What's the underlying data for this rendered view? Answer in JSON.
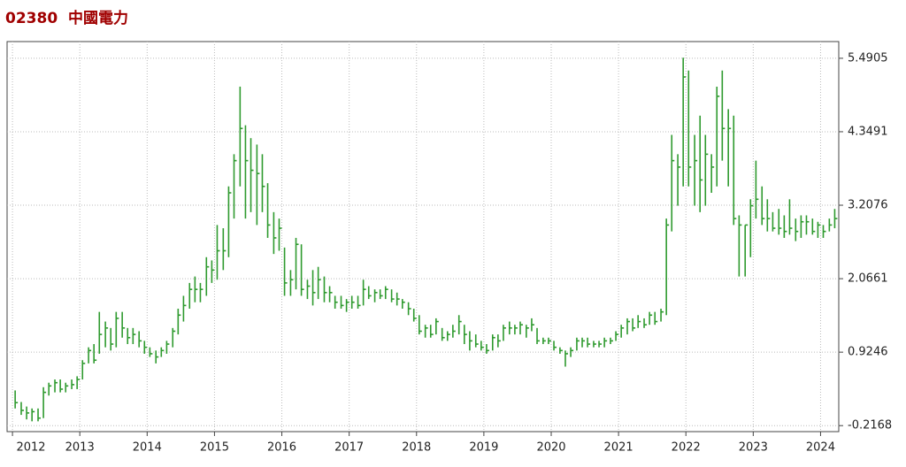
{
  "chart_data": {
    "type": "ohlc",
    "title": "02380  中國電力",
    "color": "#2e9a2e",
    "grid": true,
    "xlim": [
      2011.92,
      2024.27
    ],
    "xticks": [
      2012,
      2013,
      2014,
      2015,
      2016,
      2017,
      2018,
      2019,
      2020,
      2021,
      2022,
      2023,
      2024
    ],
    "ylim": [
      -0.31,
      5.75
    ],
    "yticks": [
      -0.2168,
      0.9246,
      2.0661,
      3.2076,
      4.3491,
      5.4905
    ],
    "x": [
      2012.04,
      2012.13,
      2012.21,
      2012.29,
      2012.38,
      2012.46,
      2012.54,
      2012.63,
      2012.71,
      2012.79,
      2012.88,
      2012.96,
      2013.04,
      2013.13,
      2013.21,
      2013.29,
      2013.38,
      2013.46,
      2013.54,
      2013.63,
      2013.71,
      2013.79,
      2013.88,
      2013.96,
      2014.04,
      2014.13,
      2014.21,
      2014.29,
      2014.38,
      2014.46,
      2014.54,
      2014.63,
      2014.71,
      2014.79,
      2014.88,
      2014.96,
      2015.04,
      2015.13,
      2015.21,
      2015.29,
      2015.38,
      2015.46,
      2015.54,
      2015.63,
      2015.71,
      2015.79,
      2015.88,
      2015.96,
      2016.04,
      2016.13,
      2016.21,
      2016.29,
      2016.38,
      2016.46,
      2016.54,
      2016.63,
      2016.71,
      2016.79,
      2016.88,
      2016.96,
      2017.04,
      2017.13,
      2017.21,
      2017.29,
      2017.38,
      2017.46,
      2017.54,
      2017.63,
      2017.71,
      2017.79,
      2017.88,
      2017.96,
      2018.04,
      2018.13,
      2018.21,
      2018.29,
      2018.38,
      2018.46,
      2018.54,
      2018.63,
      2018.71,
      2018.79,
      2018.88,
      2018.96,
      2019.04,
      2019.13,
      2019.21,
      2019.29,
      2019.38,
      2019.46,
      2019.54,
      2019.63,
      2019.71,
      2019.79,
      2019.88,
      2019.96,
      2020.04,
      2020.13,
      2020.21,
      2020.29,
      2020.38,
      2020.46,
      2020.54,
      2020.63,
      2020.71,
      2020.79,
      2020.88,
      2020.96,
      2021.04,
      2021.13,
      2021.21,
      2021.29,
      2021.38,
      2021.46,
      2021.54,
      2021.63,
      2021.71,
      2021.79,
      2021.88,
      2021.96,
      2022.04,
      2022.13,
      2022.21,
      2022.29,
      2022.38,
      2022.46,
      2022.54,
      2022.63,
      2022.71,
      2022.79,
      2022.88,
      2022.96,
      2023.04,
      2023.13,
      2023.21,
      2023.29,
      2023.38,
      2023.46,
      2023.54,
      2023.63,
      2023.71,
      2023.79,
      2023.88,
      2023.96,
      2024.04,
      2024.13,
      2024.21
    ],
    "high": [
      0.33,
      0.15,
      0.08,
      0.05,
      0.05,
      0.38,
      0.45,
      0.5,
      0.5,
      0.45,
      0.5,
      0.55,
      0.8,
      1.0,
      1.05,
      1.55,
      1.4,
      1.3,
      1.55,
      1.55,
      1.3,
      1.3,
      1.25,
      1.1,
      1.0,
      0.95,
      1.0,
      1.1,
      1.3,
      1.6,
      1.8,
      2.0,
      2.1,
      2.0,
      2.4,
      2.35,
      2.9,
      2.85,
      3.5,
      4.0,
      5.05,
      4.45,
      4.25,
      4.15,
      4.0,
      3.55,
      3.1,
      3.0,
      2.55,
      2.2,
      2.7,
      2.6,
      2.05,
      2.2,
      2.25,
      2.1,
      1.95,
      1.8,
      1.8,
      1.75,
      1.8,
      1.8,
      2.05,
      1.95,
      1.9,
      1.9,
      1.95,
      1.9,
      1.85,
      1.75,
      1.7,
      1.6,
      1.5,
      1.35,
      1.35,
      1.45,
      1.3,
      1.25,
      1.35,
      1.5,
      1.35,
      1.25,
      1.2,
      1.1,
      1.05,
      1.2,
      1.2,
      1.35,
      1.4,
      1.35,
      1.4,
      1.35,
      1.45,
      1.3,
      1.15,
      1.15,
      1.1,
      1.0,
      0.95,
      1.0,
      1.15,
      1.15,
      1.15,
      1.1,
      1.1,
      1.15,
      1.15,
      1.25,
      1.35,
      1.45,
      1.45,
      1.5,
      1.45,
      1.55,
      1.55,
      1.6,
      3.0,
      4.3,
      4.0,
      5.5,
      5.3,
      4.3,
      4.6,
      4.3,
      4.0,
      5.05,
      5.3,
      4.7,
      4.6,
      3.05,
      2.9,
      3.3,
      3.9,
      3.5,
      3.3,
      3.1,
      3.15,
      3.05,
      3.3,
      3.0,
      3.05,
      3.05,
      3.0,
      2.95,
      2.9,
      3.0,
      3.15
    ],
    "low": [
      0.05,
      -0.05,
      -0.12,
      -0.15,
      -0.15,
      -0.1,
      0.25,
      0.3,
      0.3,
      0.3,
      0.35,
      0.35,
      0.5,
      0.75,
      0.75,
      0.9,
      1.0,
      0.95,
      1.0,
      1.15,
      1.05,
      1.05,
      1.0,
      0.9,
      0.85,
      0.75,
      0.85,
      0.9,
      1.0,
      1.2,
      1.4,
      1.6,
      1.7,
      1.7,
      1.8,
      2.0,
      2.05,
      2.2,
      2.4,
      3.0,
      3.5,
      3.0,
      3.1,
      2.9,
      3.1,
      2.7,
      2.45,
      2.5,
      1.8,
      1.8,
      1.9,
      1.8,
      1.75,
      1.65,
      1.75,
      1.7,
      1.7,
      1.6,
      1.6,
      1.55,
      1.6,
      1.6,
      1.65,
      1.75,
      1.7,
      1.75,
      1.75,
      1.7,
      1.65,
      1.6,
      1.5,
      1.4,
      1.2,
      1.15,
      1.15,
      1.2,
      1.1,
      1.1,
      1.15,
      1.2,
      1.05,
      0.95,
      1.0,
      0.95,
      0.9,
      0.95,
      1.0,
      1.1,
      1.2,
      1.2,
      1.2,
      1.15,
      1.25,
      1.05,
      1.05,
      1.05,
      0.95,
      0.9,
      0.7,
      0.85,
      0.95,
      1.0,
      1.0,
      1.0,
      1.0,
      1.0,
      1.05,
      1.1,
      1.15,
      1.2,
      1.25,
      1.3,
      1.3,
      1.35,
      1.35,
      1.4,
      1.5,
      2.8,
      3.2,
      3.5,
      3.5,
      3.2,
      3.1,
      3.2,
      3.4,
      3.5,
      3.9,
      3.5,
      2.9,
      2.1,
      2.1,
      2.4,
      3.0,
      2.9,
      2.8,
      2.8,
      2.75,
      2.7,
      2.75,
      2.65,
      2.7,
      2.75,
      2.75,
      2.7,
      2.7,
      2.8,
      2.85
    ],
    "close": [
      0.14,
      0.02,
      -0.02,
      0,
      -0.1,
      0.3,
      0.4,
      0.45,
      0.35,
      0.4,
      0.42,
      0.5,
      0.75,
      0.95,
      0.8,
      1.2,
      1.3,
      1.05,
      1.45,
      1.3,
      1.15,
      1.2,
      1.1,
      1.0,
      0.9,
      0.85,
      0.95,
      1.05,
      1.25,
      1.5,
      1.65,
      1.9,
      1.9,
      1.9,
      2.25,
      2.2,
      2.5,
      2.5,
      3.4,
      3.9,
      4.4,
      3.9,
      3.75,
      3.7,
      3.5,
      2.9,
      2.7,
      2.85,
      2.0,
      2.05,
      2.6,
      1.9,
      1.95,
      1.85,
      2.05,
      1.85,
      1.85,
      1.7,
      1.65,
      1.7,
      1.7,
      1.65,
      1.9,
      1.8,
      1.85,
      1.8,
      1.9,
      1.75,
      1.75,
      1.7,
      1.6,
      1.45,
      1.25,
      1.3,
      1.2,
      1.4,
      1.15,
      1.2,
      1.25,
      1.4,
      1.2,
      1.1,
      1.05,
      1.0,
      0.95,
      1.15,
      1.1,
      1.3,
      1.3,
      1.3,
      1.35,
      1.3,
      1.35,
      1.1,
      1.1,
      1.1,
      1.0,
      0.95,
      0.9,
      0.95,
      1.1,
      1.1,
      1.05,
      1.05,
      1.05,
      1.1,
      1.1,
      1.2,
      1.3,
      1.4,
      1.3,
      1.4,
      1.35,
      1.5,
      1.4,
      1.55,
      2.9,
      3.9,
      3.8,
      5.2,
      3.8,
      3.9,
      3.6,
      4.0,
      3.8,
      4.9,
      4.4,
      4.4,
      3.0,
      2.9,
      2.9,
      3.2,
      3.3,
      3.0,
      3.0,
      2.85,
      2.85,
      2.8,
      2.85,
      2.8,
      2.95,
      2.95,
      2.8,
      2.9,
      2.8,
      2.9,
      3.0
    ]
  }
}
